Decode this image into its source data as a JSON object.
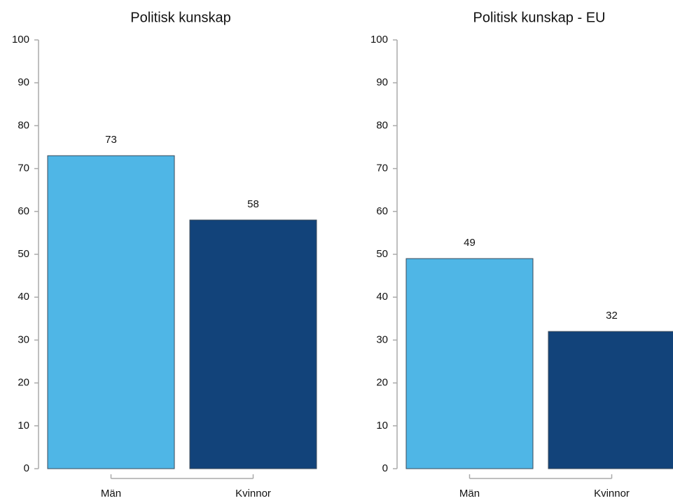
{
  "chart_data": [
    {
      "type": "bar",
      "title": "Politisk kunskap",
      "categories": [
        "Män",
        "Kvinnor"
      ],
      "values": [
        73,
        58
      ],
      "colors": [
        "#4fb6e6",
        "#12437a"
      ],
      "ylim": [
        0,
        100
      ],
      "yticks": [
        0,
        10,
        20,
        30,
        40,
        50,
        60,
        70,
        80,
        90,
        100
      ]
    },
    {
      "type": "bar",
      "title": "Politisk kunskap - EU",
      "categories": [
        "Män",
        "Kvinnor"
      ],
      "values": [
        49,
        32
      ],
      "colors": [
        "#4fb6e6",
        "#12437a"
      ],
      "ylim": [
        0,
        100
      ],
      "yticks": [
        0,
        10,
        20,
        30,
        40,
        50,
        60,
        70,
        80,
        90,
        100
      ]
    }
  ]
}
